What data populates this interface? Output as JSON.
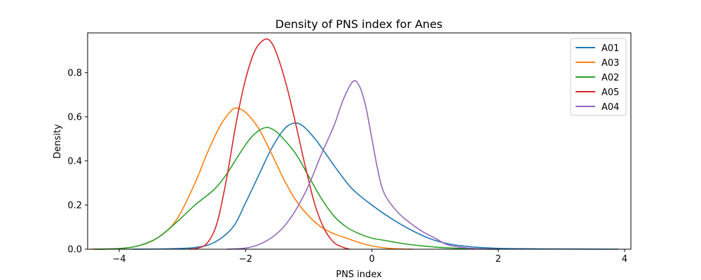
{
  "chart_data": {
    "type": "line",
    "title": "Density of PNS index for Anes",
    "xlabel": "PNS index",
    "ylabel": "Density",
    "xlim": [
      -4.5,
      4.1
    ],
    "ylim": [
      0,
      0.98
    ],
    "xticks": [
      -4,
      -2,
      0,
      2,
      4
    ],
    "xtick_labels": [
      "−4",
      "−2",
      "0",
      "2",
      "4"
    ],
    "yticks": [
      0.0,
      0.2,
      0.4,
      0.6,
      0.8
    ],
    "ytick_labels": [
      "0.0",
      "0.2",
      "0.4",
      "0.6",
      "0.8"
    ],
    "grid": false,
    "legend_position": "top-right",
    "series": [
      {
        "name": "A01",
        "color": "#1f77b4",
        "points": [
          [
            -3.8,
            0.0
          ],
          [
            -3.2,
            0.002
          ],
          [
            -2.8,
            0.008
          ],
          [
            -2.5,
            0.03
          ],
          [
            -2.2,
            0.1
          ],
          [
            -2.0,
            0.21
          ],
          [
            -1.8,
            0.33
          ],
          [
            -1.6,
            0.45
          ],
          [
            -1.4,
            0.54
          ],
          [
            -1.25,
            0.57
          ],
          [
            -1.1,
            0.56
          ],
          [
            -0.9,
            0.5
          ],
          [
            -0.7,
            0.42
          ],
          [
            -0.5,
            0.34
          ],
          [
            -0.3,
            0.27
          ],
          [
            0.0,
            0.2
          ],
          [
            0.3,
            0.14
          ],
          [
            0.6,
            0.09
          ],
          [
            0.9,
            0.05
          ],
          [
            1.2,
            0.025
          ],
          [
            1.6,
            0.01
          ],
          [
            2.0,
            0.004
          ],
          [
            2.5,
            0.002
          ],
          [
            3.0,
            0.001
          ],
          [
            3.9,
            0.0
          ]
        ]
      },
      {
        "name": "A03",
        "color": "#ff7f0e",
        "points": [
          [
            -4.45,
            0.0
          ],
          [
            -4.0,
            0.003
          ],
          [
            -3.7,
            0.015
          ],
          [
            -3.4,
            0.05
          ],
          [
            -3.1,
            0.13
          ],
          [
            -2.8,
            0.3
          ],
          [
            -2.6,
            0.44
          ],
          [
            -2.4,
            0.56
          ],
          [
            -2.25,
            0.62
          ],
          [
            -2.15,
            0.64
          ],
          [
            -2.0,
            0.62
          ],
          [
            -1.8,
            0.55
          ],
          [
            -1.6,
            0.44
          ],
          [
            -1.4,
            0.32
          ],
          [
            -1.2,
            0.22
          ],
          [
            -1.0,
            0.15
          ],
          [
            -0.8,
            0.1
          ],
          [
            -0.6,
            0.07
          ],
          [
            -0.4,
            0.05
          ],
          [
            -0.2,
            0.03
          ],
          [
            0.0,
            0.015
          ],
          [
            0.2,
            0.006
          ],
          [
            0.4,
            0.002
          ],
          [
            0.65,
            0.0
          ]
        ]
      },
      {
        "name": "A02",
        "color": "#2ca02c",
        "points": [
          [
            -4.4,
            0.0
          ],
          [
            -4.0,
            0.003
          ],
          [
            -3.7,
            0.015
          ],
          [
            -3.4,
            0.05
          ],
          [
            -3.1,
            0.12
          ],
          [
            -2.8,
            0.2
          ],
          [
            -2.5,
            0.27
          ],
          [
            -2.3,
            0.34
          ],
          [
            -2.1,
            0.43
          ],
          [
            -1.9,
            0.51
          ],
          [
            -1.7,
            0.55
          ],
          [
            -1.55,
            0.54
          ],
          [
            -1.4,
            0.5
          ],
          [
            -1.2,
            0.43
          ],
          [
            -1.0,
            0.33
          ],
          [
            -0.8,
            0.23
          ],
          [
            -0.6,
            0.15
          ],
          [
            -0.4,
            0.1
          ],
          [
            -0.2,
            0.07
          ],
          [
            0.0,
            0.05
          ],
          [
            0.2,
            0.04
          ],
          [
            0.5,
            0.025
          ],
          [
            0.8,
            0.015
          ],
          [
            1.2,
            0.006
          ],
          [
            1.6,
            0.002
          ],
          [
            2.0,
            0.0
          ]
        ]
      },
      {
        "name": "A05",
        "color": "#d62728",
        "points": [
          [
            -2.9,
            0.0
          ],
          [
            -2.75,
            0.005
          ],
          [
            -2.6,
            0.03
          ],
          [
            -2.45,
            0.12
          ],
          [
            -2.3,
            0.32
          ],
          [
            -2.15,
            0.57
          ],
          [
            -2.0,
            0.77
          ],
          [
            -1.85,
            0.9
          ],
          [
            -1.7,
            0.95
          ],
          [
            -1.6,
            0.94
          ],
          [
            -1.5,
            0.88
          ],
          [
            -1.35,
            0.74
          ],
          [
            -1.2,
            0.56
          ],
          [
            -1.05,
            0.37
          ],
          [
            -0.9,
            0.2
          ],
          [
            -0.75,
            0.09
          ],
          [
            -0.6,
            0.03
          ],
          [
            -0.45,
            0.008
          ],
          [
            -0.35,
            0.0
          ]
        ]
      },
      {
        "name": "A04",
        "color": "#9467bd",
        "points": [
          [
            -2.3,
            0.0
          ],
          [
            -2.0,
            0.005
          ],
          [
            -1.8,
            0.02
          ],
          [
            -1.6,
            0.05
          ],
          [
            -1.4,
            0.1
          ],
          [
            -1.2,
            0.18
          ],
          [
            -1.0,
            0.29
          ],
          [
            -0.8,
            0.43
          ],
          [
            -0.6,
            0.56
          ],
          [
            -0.45,
            0.68
          ],
          [
            -0.3,
            0.76
          ],
          [
            -0.2,
            0.74
          ],
          [
            -0.1,
            0.65
          ],
          [
            0.0,
            0.5
          ],
          [
            0.1,
            0.35
          ],
          [
            0.2,
            0.25
          ],
          [
            0.4,
            0.17
          ],
          [
            0.6,
            0.12
          ],
          [
            0.8,
            0.08
          ],
          [
            1.0,
            0.05
          ],
          [
            1.2,
            0.02
          ],
          [
            1.5,
            0.006
          ],
          [
            1.8,
            0.001
          ],
          [
            2.0,
            0.0
          ]
        ]
      }
    ]
  }
}
